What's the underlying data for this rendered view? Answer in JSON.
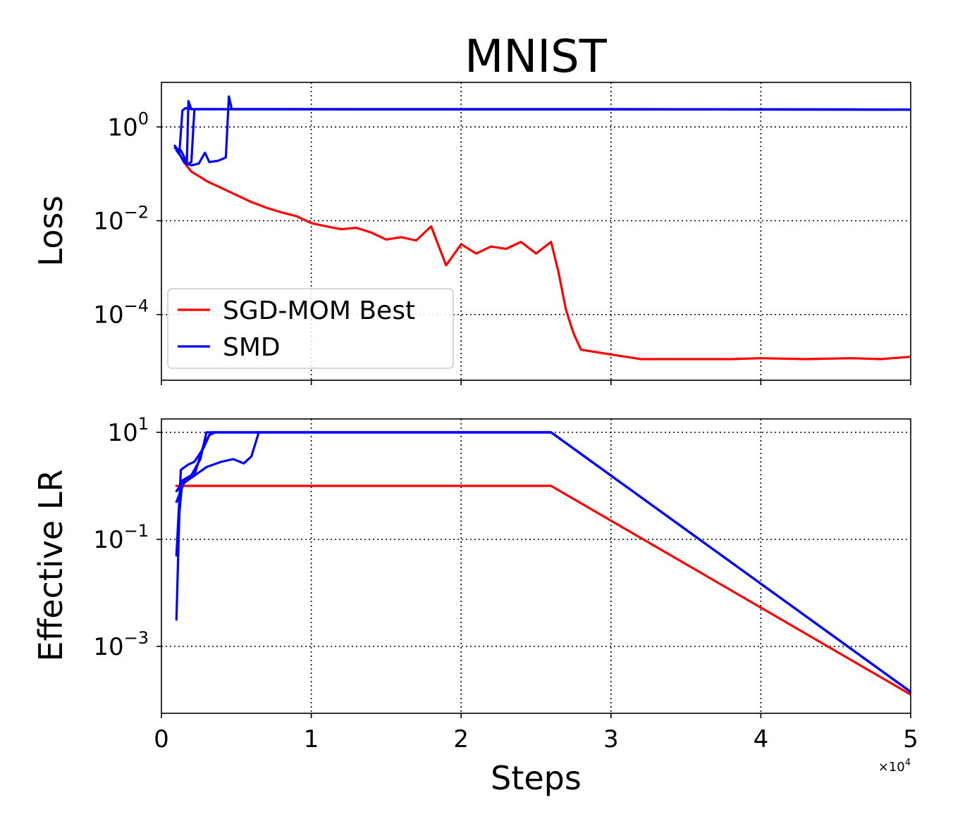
{
  "title": "MNIST",
  "colors": {
    "sgd": "#ff0000",
    "smd": "#0000ff"
  },
  "chart_data": [
    {
      "type": "line",
      "title": "MNIST",
      "xlabel": "",
      "ylabel": "Loss",
      "yscale": "log",
      "xlim": [
        0,
        50000
      ],
      "ylim_exp": [
        -5.4,
        0.95
      ],
      "grid": true,
      "legend_position": "lower-left",
      "x_ticks": [
        0,
        10000,
        20000,
        30000,
        40000,
        50000
      ],
      "y_ticks": [
        {
          "exp": 0,
          "base": "10",
          "sup": "0"
        },
        {
          "exp": -2,
          "base": "10",
          "sup": "−2"
        },
        {
          "exp": -4,
          "base": "10",
          "sup": "−4"
        }
      ],
      "legend": [
        {
          "label": "SGD-MOM Best",
          "color": "#ff0000"
        },
        {
          "label": "SMD",
          "color": "#0000ff"
        }
      ],
      "series": [
        {
          "name": "SGD-MOM Best",
          "color": "#ff0000",
          "points": [
            [
              1000,
              -0.45
            ],
            [
              1500,
              -0.75
            ],
            [
              2000,
              -0.95
            ],
            [
              3000,
              -1.15
            ],
            [
              4000,
              -1.3
            ],
            [
              5000,
              -1.45
            ],
            [
              6000,
              -1.6
            ],
            [
              7000,
              -1.72
            ],
            [
              8000,
              -1.82
            ],
            [
              9000,
              -1.9
            ],
            [
              10000,
              -2.05
            ],
            [
              11000,
              -2.12
            ],
            [
              12000,
              -2.18
            ],
            [
              13000,
              -2.15
            ],
            [
              14000,
              -2.25
            ],
            [
              15000,
              -2.4
            ],
            [
              16000,
              -2.35
            ],
            [
              17000,
              -2.42
            ],
            [
              18000,
              -2.12
            ],
            [
              19000,
              -2.95
            ],
            [
              20000,
              -2.5
            ],
            [
              21000,
              -2.7
            ],
            [
              22000,
              -2.55
            ],
            [
              23000,
              -2.6
            ],
            [
              24000,
              -2.45
            ],
            [
              25000,
              -2.7
            ],
            [
              26000,
              -2.45
            ],
            [
              26500,
              -3.1
            ],
            [
              27000,
              -3.9
            ],
            [
              27500,
              -4.4
            ],
            [
              28000,
              -4.75
            ],
            [
              29000,
              -4.8
            ],
            [
              30000,
              -4.85
            ],
            [
              32000,
              -4.95
            ],
            [
              35000,
              -4.95
            ],
            [
              38000,
              -4.95
            ],
            [
              40000,
              -4.93
            ],
            [
              43000,
              -4.95
            ],
            [
              46000,
              -4.93
            ],
            [
              48000,
              -4.95
            ],
            [
              50000,
              -4.9
            ]
          ]
        },
        {
          "name": "SMD run 1",
          "color": "#0000ff",
          "points": [
            [
              900,
              -0.4
            ],
            [
              1200,
              -0.55
            ],
            [
              1400,
              0.35
            ],
            [
              1600,
              0.4
            ],
            [
              2000,
              0.38
            ],
            [
              10000,
              0.38
            ],
            [
              30000,
              0.38
            ],
            [
              50000,
              0.37
            ]
          ]
        },
        {
          "name": "SMD run 2",
          "color": "#0000ff",
          "points": [
            [
              900,
              -0.45
            ],
            [
              1300,
              -0.5
            ],
            [
              1700,
              -0.75
            ],
            [
              1800,
              0.55
            ],
            [
              2000,
              0.38
            ],
            [
              50000,
              0.37
            ]
          ]
        },
        {
          "name": "SMD run 3",
          "color": "#0000ff",
          "points": [
            [
              1000,
              -0.5
            ],
            [
              1700,
              -0.8
            ],
            [
              2000,
              -0.75
            ],
            [
              2200,
              0.38
            ],
            [
              50000,
              0.37
            ]
          ]
        },
        {
          "name": "SMD run 4",
          "color": "#0000ff",
          "points": [
            [
              1000,
              -0.45
            ],
            [
              1500,
              -0.75
            ],
            [
              2000,
              -0.82
            ],
            [
              2500,
              -0.78
            ],
            [
              2900,
              -0.55
            ],
            [
              3200,
              -0.75
            ],
            [
              3800,
              -0.72
            ],
            [
              4300,
              -0.65
            ],
            [
              4500,
              0.65
            ],
            [
              4700,
              0.38
            ],
            [
              50000,
              0.37
            ]
          ]
        }
      ]
    },
    {
      "type": "line",
      "title": "",
      "xlabel": "Steps",
      "ylabel": "Effective LR",
      "yscale": "log",
      "xlim": [
        0,
        50000
      ],
      "ylim_exp": [
        -4.25,
        1.25
      ],
      "grid": true,
      "x_ticks": [
        0,
        10000,
        20000,
        30000,
        40000,
        50000
      ],
      "x_tick_labels": [
        "0",
        "1",
        "2",
        "3",
        "4",
        "5"
      ],
      "x_multiplier": {
        "base": "×10",
        "sup": "4"
      },
      "y_ticks": [
        {
          "exp": 1,
          "base": "10",
          "sup": "1"
        },
        {
          "exp": -1,
          "base": "10",
          "sup": "−1"
        },
        {
          "exp": -3,
          "base": "10",
          "sup": "−3"
        }
      ],
      "series": [
        {
          "name": "SGD-MOM Best",
          "color": "#ff0000",
          "points": [
            [
              1000,
              0.0
            ],
            [
              1300,
              0.0
            ],
            [
              26000,
              0.0
            ],
            [
              50000,
              -3.9
            ]
          ]
        },
        {
          "name": "SMD run 1",
          "color": "#0000ff",
          "points": [
            [
              1000,
              -2.5
            ],
            [
              1200,
              -0.5
            ],
            [
              1400,
              0.1
            ],
            [
              2000,
              0.2
            ],
            [
              2600,
              0.5
            ],
            [
              3000,
              1.0
            ],
            [
              26000,
              1.0
            ],
            [
              50000,
              -3.85
            ]
          ]
        },
        {
          "name": "SMD run 2",
          "color": "#0000ff",
          "points": [
            [
              1000,
              -1.3
            ],
            [
              1300,
              0.3
            ],
            [
              1800,
              0.4
            ],
            [
              2200,
              0.45
            ],
            [
              2800,
              0.7
            ],
            [
              3200,
              0.95
            ],
            [
              3600,
              1.0
            ],
            [
              26000,
              1.0
            ],
            [
              50000,
              -3.85
            ]
          ]
        },
        {
          "name": "SMD run 3",
          "color": "#0000ff",
          "points": [
            [
              1000,
              -0.3
            ],
            [
              1500,
              0.05
            ],
            [
              2200,
              0.2
            ],
            [
              2800,
              0.75
            ],
            [
              3300,
              1.0
            ],
            [
              26000,
              1.0
            ],
            [
              50000,
              -3.85
            ]
          ]
        },
        {
          "name": "SMD run 4",
          "color": "#0000ff",
          "points": [
            [
              1000,
              -0.1
            ],
            [
              1500,
              0.1
            ],
            [
              2000,
              0.15
            ],
            [
              2500,
              0.25
            ],
            [
              3000,
              0.35
            ],
            [
              4000,
              0.45
            ],
            [
              4800,
              0.5
            ],
            [
              5500,
              0.42
            ],
            [
              6000,
              0.55
            ],
            [
              6500,
              1.0
            ],
            [
              26000,
              1.0
            ],
            [
              50000,
              -3.85
            ]
          ]
        }
      ]
    }
  ]
}
